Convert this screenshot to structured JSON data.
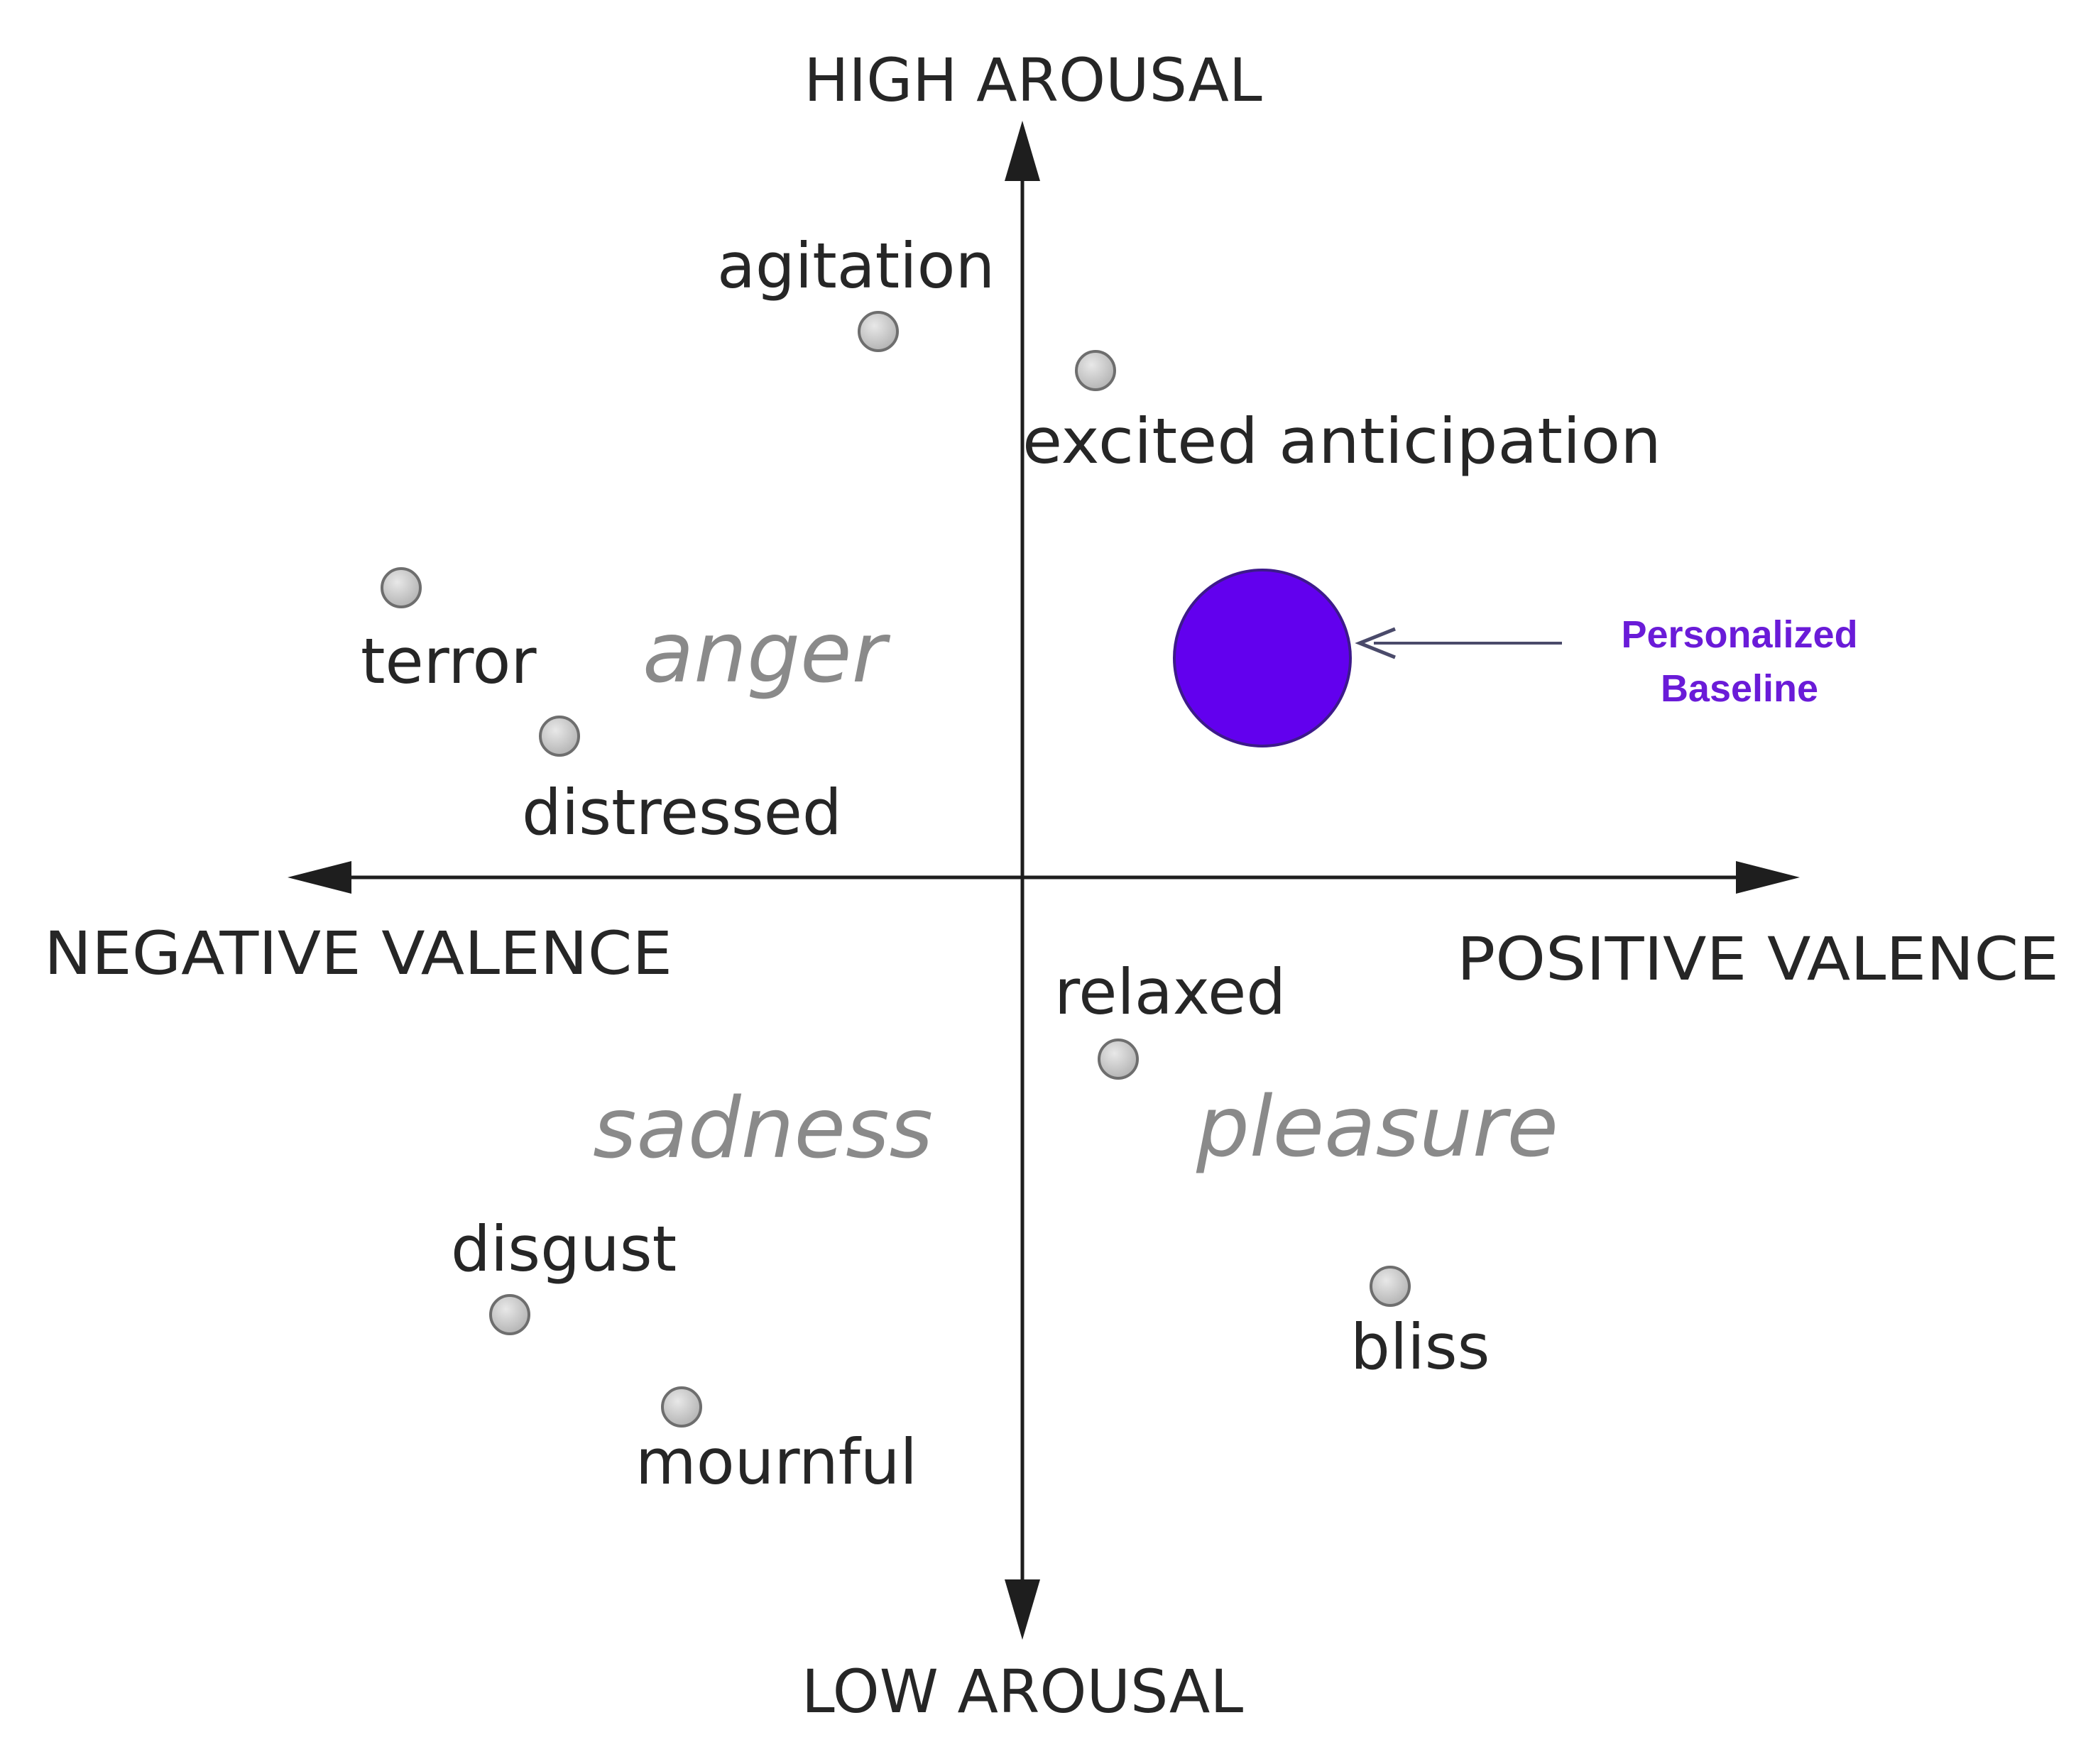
{
  "axes": {
    "top": "HIGH AROUSAL",
    "bottom": "LOW AROUSAL",
    "left": "NEGATIVE VALENCE",
    "right": "POSITIVE VALENCE"
  },
  "emotions": [
    {
      "label": "agitation"
    },
    {
      "label": "excited anticipation"
    },
    {
      "label": "terror"
    },
    {
      "label": "distressed"
    },
    {
      "label": "relaxed"
    },
    {
      "label": "disgust"
    },
    {
      "label": "mournful"
    },
    {
      "label": "bliss"
    }
  ],
  "regions": [
    {
      "label": "anger"
    },
    {
      "label": "sadness"
    },
    {
      "label": "pleasure"
    }
  ],
  "callout": {
    "line1": "Personalized",
    "line2": "Baseline",
    "color": "#6a1bd8",
    "marker_color": "#6200ee"
  },
  "colors": {
    "axis": "#1e1e1e",
    "point_fill": "#cfcfcf",
    "point_stroke": "#6e6e6e",
    "arrow": "#4a4a6a"
  }
}
